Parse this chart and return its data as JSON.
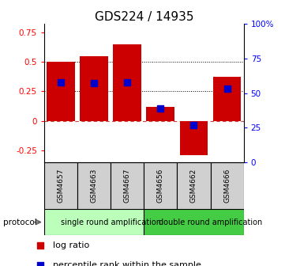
{
  "title": "GDS224 / 14935",
  "samples": [
    "GSM4657",
    "GSM4663",
    "GSM4667",
    "GSM4656",
    "GSM4662",
    "GSM4666"
  ],
  "log_ratios": [
    0.5,
    0.55,
    0.65,
    0.12,
    -0.29,
    0.37
  ],
  "percentile_ranks": [
    58,
    57,
    58,
    39,
    27,
    53
  ],
  "bar_color": "#cc0000",
  "dot_color": "#0000cc",
  "ylim_left": [
    -0.35,
    0.82
  ],
  "ylim_right": [
    0,
    100
  ],
  "yticks_left": [
    -0.25,
    0,
    0.25,
    0.5,
    0.75
  ],
  "yticks_right": [
    0,
    25,
    50,
    75,
    100
  ],
  "ytick_labels_right": [
    "0",
    "25",
    "50",
    "75",
    "100%"
  ],
  "hlines_dotted": [
    0.25,
    0.5
  ],
  "hline_dashed_color": "#cc4444",
  "protocol_groups": [
    {
      "label": "single round amplification",
      "start": 0,
      "end": 3,
      "color": "#bbffbb"
    },
    {
      "label": "double round amplification",
      "start": 3,
      "end": 6,
      "color": "#44cc44"
    }
  ],
  "protocol_label": "protocol",
  "legend": [
    {
      "label": "log ratio",
      "color": "#cc0000"
    },
    {
      "label": "percentile rank within the sample",
      "color": "#0000cc"
    }
  ],
  "bar_width": 0.85,
  "dot_size": 28,
  "title_fontsize": 11,
  "tick_fontsize": 7.5,
  "sample_fontsize": 6.5,
  "protocol_fontsize": 7,
  "legend_fontsize": 8,
  "n_samples": 6
}
